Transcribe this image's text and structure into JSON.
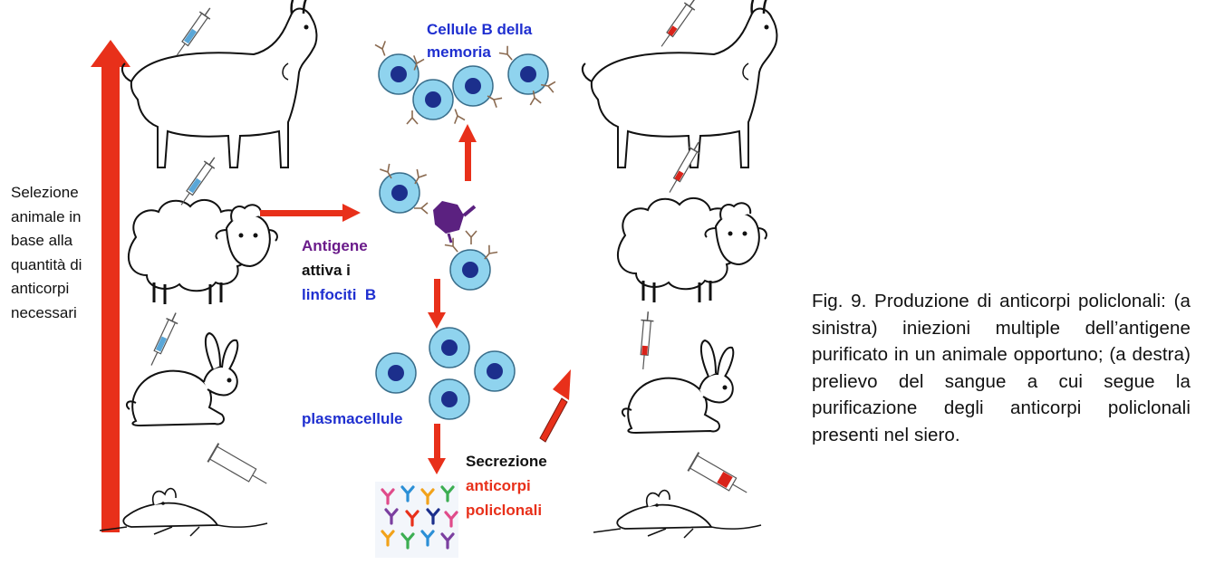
{
  "labels": {
    "left_selection": "Selezione animale in base alla quantità di anticorpi necessari",
    "memory_cells": "Cellule B della memoria",
    "antigen_line1": "Antigene",
    "antigen_line2": "attiva i",
    "antigen_line3": "linfociti  B",
    "plasma_cells": "plasmacellule",
    "secretion_line1": "Secrezione",
    "secretion_line2": "anticorpi",
    "secretion_line3": "policlonali"
  },
  "caption": "Fig. 9. Produzione di anticorpi policlonali: (a sinistra) iniezioni multiple dell’antigene purificato in un animale opportuno; (a destra) prelievo del sangue a cui segue la purificazione degli anticorpi policlonali presenti nel siero.",
  "colors": {
    "arrow": "#e8301a",
    "cell_fill": "#8fd3ee",
    "nucleus": "#1c2f8c",
    "antigen": "#5b2180",
    "memory_text": "#1f2fd0",
    "antigen_text": "#6a1b8a",
    "secretion_text": "#e8301a",
    "syringe_blue": "#5aa7d8",
    "syringe_red": "#d9231a"
  }
}
